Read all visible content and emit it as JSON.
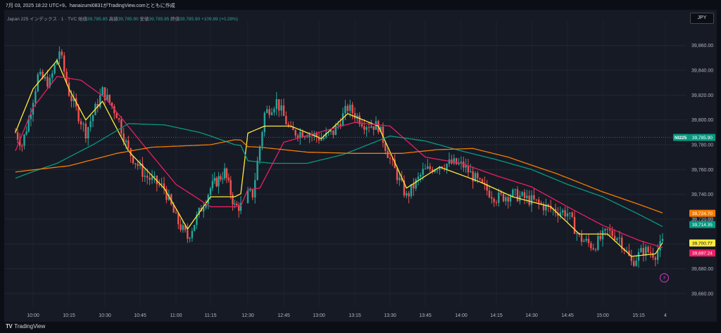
{
  "header": {
    "caption": "7月 03, 2025 18:22 UTC+9、hanaizumi0831がTradingView.comとともに作成",
    "symbol": "Japan 225 インデックス · 1 · TVC",
    "open_label": "始値",
    "open_value": "39,785.85",
    "high_label": "高値",
    "high_value": "39,785.90",
    "low_label": "安値",
    "low_value": "39,785.85",
    "close_label": "終値",
    "close_value": "39,785.90",
    "change": "+109.89 (+0.28%)"
  },
  "currency_button": "JPY",
  "footer_logo": "TradingView",
  "lightning_icon": "lightning-icon",
  "colors": {
    "up": "#26a69a",
    "down": "#ef5350",
    "ma_yellow": "#ffeb3b",
    "ma_pink": "#e91e63",
    "ma_teal": "#089981",
    "ma_orange": "#f57c00",
    "background": "#161a25"
  },
  "chart_data": {
    "type": "candlestick",
    "symbol": "NI225",
    "interval": "1",
    "x_ticks": [
      "10:00",
      "10:15",
      "10:30",
      "10:45",
      "11:00",
      "11:15",
      "12:30",
      "12:45",
      "13:00",
      "13:15",
      "13:30",
      "13:45",
      "14:00",
      "14:15",
      "14:30",
      "14:45",
      "15:00",
      "15:15",
      "4"
    ],
    "y_ticks": [
      "39,860.00",
      "39,840.00",
      "39,820.00",
      "39,800.00",
      "39,780.00",
      "39,760.00",
      "39,740.00",
      "39,720.00",
      "39,700.00",
      "39,680.00",
      "39,660.00"
    ],
    "ylim": [
      39652,
      39874
    ],
    "price_path": [
      {
        "t": "09:52",
        "p": 39790
      },
      {
        "t": "09:55",
        "p": 39780
      },
      {
        "t": "09:58",
        "p": 39800
      },
      {
        "t": "10:02",
        "p": 39835
      },
      {
        "t": "10:07",
        "p": 39830
      },
      {
        "t": "10:11",
        "p": 39856
      },
      {
        "t": "10:15",
        "p": 39822
      },
      {
        "t": "10:22",
        "p": 39790
      },
      {
        "t": "10:29",
        "p": 39823
      },
      {
        "t": "10:35",
        "p": 39805
      },
      {
        "t": "10:40",
        "p": 39775
      },
      {
        "t": "10:47",
        "p": 39755
      },
      {
        "t": "10:55",
        "p": 39745
      },
      {
        "t": "11:00",
        "p": 39720
      },
      {
        "t": "11:05",
        "p": 39705
      },
      {
        "t": "11:10",
        "p": 39725
      },
      {
        "t": "11:15",
        "p": 39745
      },
      {
        "t": "11:22",
        "p": 39758
      },
      {
        "t": "11:27",
        "p": 39730
      },
      {
        "t": "12:32",
        "p": 39740
      },
      {
        "t": "12:37",
        "p": 39805
      },
      {
        "t": "12:42",
        "p": 39815
      },
      {
        "t": "12:48",
        "p": 39790
      },
      {
        "t": "12:55",
        "p": 39790
      },
      {
        "t": "13:01",
        "p": 39785
      },
      {
        "t": "13:06",
        "p": 39790
      },
      {
        "t": "13:12",
        "p": 39810
      },
      {
        "t": "13:19",
        "p": 39797
      },
      {
        "t": "13:25",
        "p": 39795
      },
      {
        "t": "13:30",
        "p": 39768
      },
      {
        "t": "13:37",
        "p": 39738
      },
      {
        "t": "13:44",
        "p": 39758
      },
      {
        "t": "13:51",
        "p": 39764
      },
      {
        "t": "13:57",
        "p": 39765
      },
      {
        "t": "14:01",
        "p": 39763
      },
      {
        "t": "14:08",
        "p": 39748
      },
      {
        "t": "14:15",
        "p": 39737
      },
      {
        "t": "14:22",
        "p": 39740
      },
      {
        "t": "14:30",
        "p": 39735
      },
      {
        "t": "14:38",
        "p": 39728
      },
      {
        "t": "14:45",
        "p": 39725
      },
      {
        "t": "14:50",
        "p": 39705
      },
      {
        "t": "14:56",
        "p": 39698
      },
      {
        "t": "15:02",
        "p": 39710
      },
      {
        "t": "15:07",
        "p": 39705
      },
      {
        "t": "15:12",
        "p": 39685
      },
      {
        "t": "15:17",
        "p": 39695
      },
      {
        "t": "15:22",
        "p": 39692
      },
      {
        "t": "15:25",
        "p": 39701
      }
    ],
    "moving_averages": [
      {
        "color": "#ffeb3b",
        "last": "39,700.77",
        "points": [
          {
            "t": "09:52",
            "p": 39790
          },
          {
            "t": "10:00",
            "p": 39825
          },
          {
            "t": "10:10",
            "p": 39848
          },
          {
            "t": "10:15",
            "p": 39825
          },
          {
            "t": "10:22",
            "p": 39800
          },
          {
            "t": "10:29",
            "p": 39815
          },
          {
            "t": "10:40",
            "p": 39775
          },
          {
            "t": "10:55",
            "p": 39745
          },
          {
            "t": "11:05",
            "p": 39712
          },
          {
            "t": "11:15",
            "p": 39738
          },
          {
            "t": "11:27",
            "p": 39738
          },
          {
            "t": "12:37",
            "p": 39795
          },
          {
            "t": "12:48",
            "p": 39795
          },
          {
            "t": "13:01",
            "p": 39785
          },
          {
            "t": "13:12",
            "p": 39805
          },
          {
            "t": "13:25",
            "p": 39795
          },
          {
            "t": "13:37",
            "p": 39745
          },
          {
            "t": "13:51",
            "p": 39762
          },
          {
            "t": "14:08",
            "p": 39750
          },
          {
            "t": "14:22",
            "p": 39738
          },
          {
            "t": "14:38",
            "p": 39730
          },
          {
            "t": "14:50",
            "p": 39708
          },
          {
            "t": "15:02",
            "p": 39708
          },
          {
            "t": "15:12",
            "p": 39690
          },
          {
            "t": "15:22",
            "p": 39692
          },
          {
            "t": "15:25",
            "p": 39701
          }
        ]
      },
      {
        "color": "#e91e63",
        "last": "39,697.24",
        "points": [
          {
            "t": "09:52",
            "p": 39775
          },
          {
            "t": "10:00",
            "p": 39810
          },
          {
            "t": "10:10",
            "p": 39835
          },
          {
            "t": "10:20",
            "p": 39832
          },
          {
            "t": "10:30",
            "p": 39818
          },
          {
            "t": "10:45",
            "p": 39783
          },
          {
            "t": "11:00",
            "p": 39748
          },
          {
            "t": "11:15",
            "p": 39730
          },
          {
            "t": "11:27",
            "p": 39730
          },
          {
            "t": "12:35",
            "p": 39745
          },
          {
            "t": "12:45",
            "p": 39782
          },
          {
            "t": "13:00",
            "p": 39790
          },
          {
            "t": "13:15",
            "p": 39798
          },
          {
            "t": "13:30",
            "p": 39795
          },
          {
            "t": "13:45",
            "p": 39770
          },
          {
            "t": "14:00",
            "p": 39765
          },
          {
            "t": "14:15",
            "p": 39755
          },
          {
            "t": "14:30",
            "p": 39746
          },
          {
            "t": "14:45",
            "p": 39730
          },
          {
            "t": "15:00",
            "p": 39715
          },
          {
            "t": "15:15",
            "p": 39703
          },
          {
            "t": "15:25",
            "p": 39697
          }
        ]
      },
      {
        "color": "#089981",
        "last": "39,714.35",
        "points": [
          {
            "t": "09:52",
            "p": 39753
          },
          {
            "t": "10:10",
            "p": 39765
          },
          {
            "t": "10:25",
            "p": 39780
          },
          {
            "t": "10:40",
            "p": 39797
          },
          {
            "t": "10:55",
            "p": 39796
          },
          {
            "t": "11:10",
            "p": 39790
          },
          {
            "t": "11:27",
            "p": 39780
          },
          {
            "t": "12:40",
            "p": 39765
          },
          {
            "t": "12:55",
            "p": 39765
          },
          {
            "t": "13:10",
            "p": 39772
          },
          {
            "t": "13:30",
            "p": 39787
          },
          {
            "t": "13:45",
            "p": 39783
          },
          {
            "t": "14:00",
            "p": 39775
          },
          {
            "t": "14:15",
            "p": 39768
          },
          {
            "t": "14:30",
            "p": 39760
          },
          {
            "t": "14:45",
            "p": 39748
          },
          {
            "t": "15:00",
            "p": 39738
          },
          {
            "t": "15:15",
            "p": 39724
          },
          {
            "t": "15:25",
            "p": 39714
          }
        ]
      },
      {
        "color": "#f57c00",
        "last": "39,724.70",
        "points": [
          {
            "t": "09:52",
            "p": 39758
          },
          {
            "t": "10:15",
            "p": 39763
          },
          {
            "t": "10:35",
            "p": 39773
          },
          {
            "t": "10:50",
            "p": 39778
          },
          {
            "t": "11:15",
            "p": 39780
          },
          {
            "t": "11:27",
            "p": 39784
          },
          {
            "t": "12:35",
            "p": 39778
          },
          {
            "t": "12:55",
            "p": 39774
          },
          {
            "t": "13:15",
            "p": 39773
          },
          {
            "t": "13:35",
            "p": 39773
          },
          {
            "t": "13:50",
            "p": 39776
          },
          {
            "t": "14:05",
            "p": 39777
          },
          {
            "t": "14:20",
            "p": 39770
          },
          {
            "t": "14:40",
            "p": 39757
          },
          {
            "t": "15:00",
            "p": 39742
          },
          {
            "t": "15:15",
            "p": 39732
          },
          {
            "t": "15:25",
            "p": 39725
          }
        ]
      }
    ],
    "price_tags": [
      {
        "label": "NI225",
        "value": "39,785.90",
        "p": 39785.9,
        "color": "#089981"
      },
      {
        "value": "39,724.70",
        "p": 39724.7,
        "color": "#f57c00"
      },
      {
        "value": "39,720.00",
        "p": 39720.0,
        "color": "#2a2e39"
      },
      {
        "value": "39,714.35",
        "p": 39714.35,
        "color": "#089981"
      },
      {
        "value": "39,700.77",
        "p": 39700.77,
        "color": "#ffeb3b"
      },
      {
        "value": "39,697.24",
        "p": 39697.24,
        "color": "#e91e63"
      }
    ],
    "grid": true,
    "legend": "top-left"
  }
}
